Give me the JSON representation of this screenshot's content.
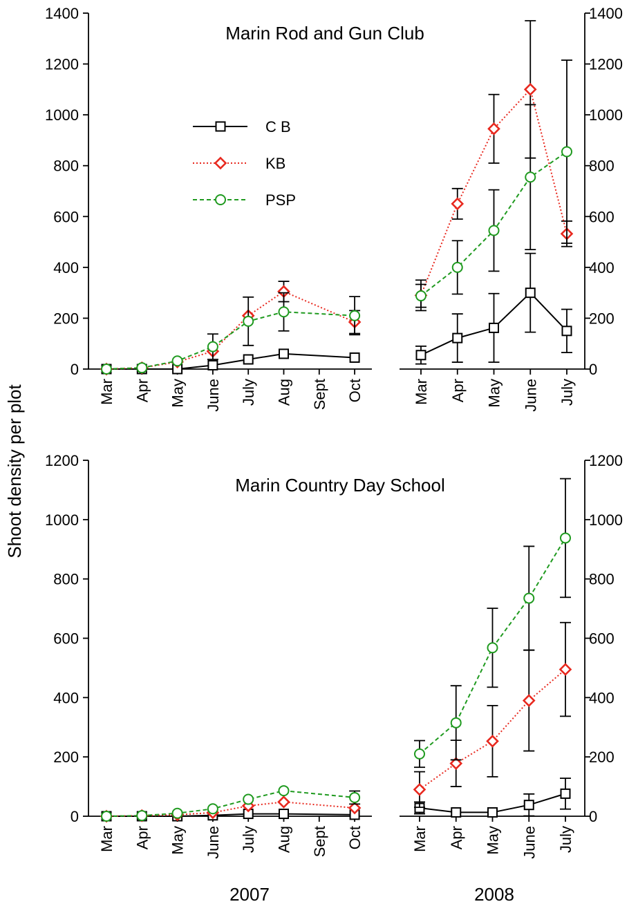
{
  "ylabel": "Shoot density per plot",
  "years": [
    "2007",
    "2008"
  ],
  "legend": [
    {
      "label": "C B",
      "series": "CB"
    },
    {
      "label": "KB",
      "series": "KB"
    },
    {
      "label": "PSP",
      "series": "PSP"
    }
  ],
  "styles": {
    "CB": {
      "color": "#000000",
      "dash": "solid",
      "marker": "square"
    },
    "KB": {
      "color": "#e8281e",
      "dash": "dotted",
      "marker": "diamond"
    },
    "PSP": {
      "color": "#1f9a1f",
      "dash": "dashed",
      "marker": "circle"
    }
  },
  "months_2007": [
    "Mar",
    "Apr",
    "May",
    "June",
    "July",
    "Aug",
    "Sept",
    "Oct"
  ],
  "months_2008": [
    "Mar",
    "Apr",
    "May",
    "June",
    "July"
  ],
  "chart_data": [
    {
      "type": "line",
      "title": "Marin Rod and Gun Club",
      "ylim": [
        0,
        1400
      ],
      "yticks": [
        0,
        200,
        400,
        600,
        800,
        1000,
        1200,
        1400
      ],
      "panels": [
        {
          "year": "2007",
          "categories": [
            "Mar",
            "Apr",
            "May",
            "June",
            "July",
            "Aug",
            "Sept",
            "Oct"
          ],
          "series": [
            {
              "name": "CB",
              "values": [
                0,
                0,
                0,
                15,
                38,
                60,
                null,
                45
              ],
              "err": [
                0,
                0,
                0,
                0,
                0,
                0,
                null,
                0
              ]
            },
            {
              "name": "KB",
              "values": [
                0,
                5,
                28,
                70,
                210,
                305,
                null,
                185
              ],
              "err": [
                0,
                0,
                0,
                0,
                0,
                40,
                null,
                45
              ]
            },
            {
              "name": "PSP",
              "values": [
                0,
                5,
                32,
                88,
                188,
                225,
                null,
                210
              ],
              "err": [
                0,
                0,
                0,
                50,
                95,
                75,
                null,
                75
              ]
            }
          ]
        },
        {
          "year": "2008",
          "categories": [
            "Mar",
            "Apr",
            "May",
            "June",
            "July"
          ],
          "series": [
            {
              "name": "CB",
              "values": [
                55,
                122,
                162,
                300,
                150
              ],
              "err": [
                35,
                95,
                135,
                155,
                85
              ]
            },
            {
              "name": "KB",
              "values": [
                290,
                650,
                945,
                1100,
                532
              ],
              "err": [
                60,
                60,
                135,
                270,
                50
              ]
            },
            {
              "name": "PSP",
              "values": [
                288,
                400,
                545,
                755,
                855
              ],
              "err": [
                45,
                105,
                160,
                285,
                360
              ]
            }
          ]
        }
      ]
    },
    {
      "type": "line",
      "title": "Marin Country Day School",
      "ylim": [
        0,
        1200
      ],
      "yticks": [
        0,
        200,
        400,
        600,
        800,
        1000,
        1200
      ],
      "panels": [
        {
          "year": "2007",
          "categories": [
            "Mar",
            "Apr",
            "May",
            "June",
            "July",
            "Aug",
            "Sept",
            "Oct"
          ],
          "series": [
            {
              "name": "CB",
              "values": [
                0,
                0,
                0,
                3,
                8,
                8,
                null,
                5
              ],
              "err": [
                0,
                0,
                0,
                0,
                0,
                0,
                null,
                0
              ]
            },
            {
              "name": "KB",
              "values": [
                0,
                2,
                5,
                12,
                35,
                48,
                null,
                28
              ],
              "err": [
                0,
                0,
                0,
                0,
                0,
                0,
                null,
                0
              ]
            },
            {
              "name": "PSP",
              "values": [
                0,
                2,
                10,
                25,
                57,
                86,
                null,
                63
              ],
              "err": [
                0,
                0,
                0,
                0,
                0,
                0,
                null,
                22
              ]
            }
          ]
        },
        {
          "year": "2008",
          "categories": [
            "Mar",
            "Apr",
            "May",
            "June",
            "July"
          ],
          "series": [
            {
              "name": "CB",
              "values": [
                28,
                13,
                13,
                38,
                76
              ],
              "err": [
                20,
                0,
                0,
                37,
                52
              ]
            },
            {
              "name": "KB",
              "values": [
                90,
                178,
                253,
                390,
                495
              ],
              "err": [
                60,
                78,
                120,
                170,
                158
              ]
            },
            {
              "name": "PSP",
              "values": [
                210,
                315,
                568,
                735,
                938
              ],
              "err": [
                45,
                125,
                133,
                175,
                200
              ]
            }
          ]
        }
      ]
    }
  ]
}
